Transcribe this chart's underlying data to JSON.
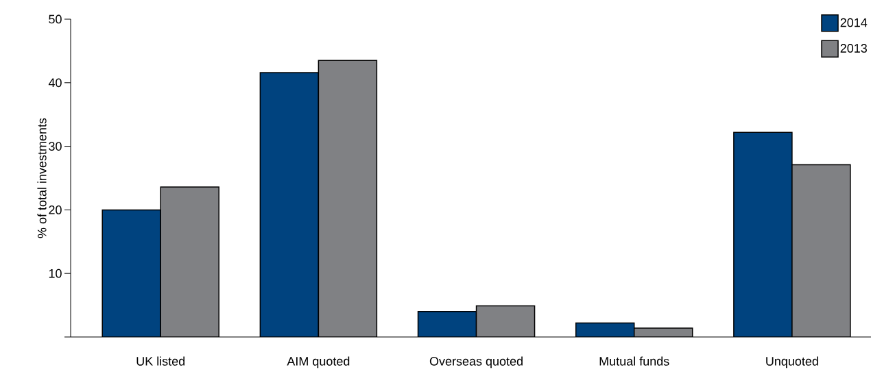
{
  "chart_data": {
    "type": "bar",
    "ylabel": "% of total investments",
    "categories": [
      "UK listed",
      "AIM quoted",
      "Overseas quoted",
      "Mutual funds",
      "Unquoted"
    ],
    "series": [
      {
        "name": "2014",
        "color": "#00437f",
        "values": [
          20.0,
          41.6,
          4.0,
          2.2,
          32.2
        ]
      },
      {
        "name": "2013",
        "color": "#808184",
        "values": [
          23.6,
          43.5,
          4.9,
          1.4,
          27.1
        ]
      }
    ],
    "ylim": [
      0,
      50
    ],
    "yticks": [
      {
        "value": 0,
        "label": null
      },
      10,
      20,
      30,
      40,
      50
    ],
    "grid": false,
    "legend": "top right"
  }
}
